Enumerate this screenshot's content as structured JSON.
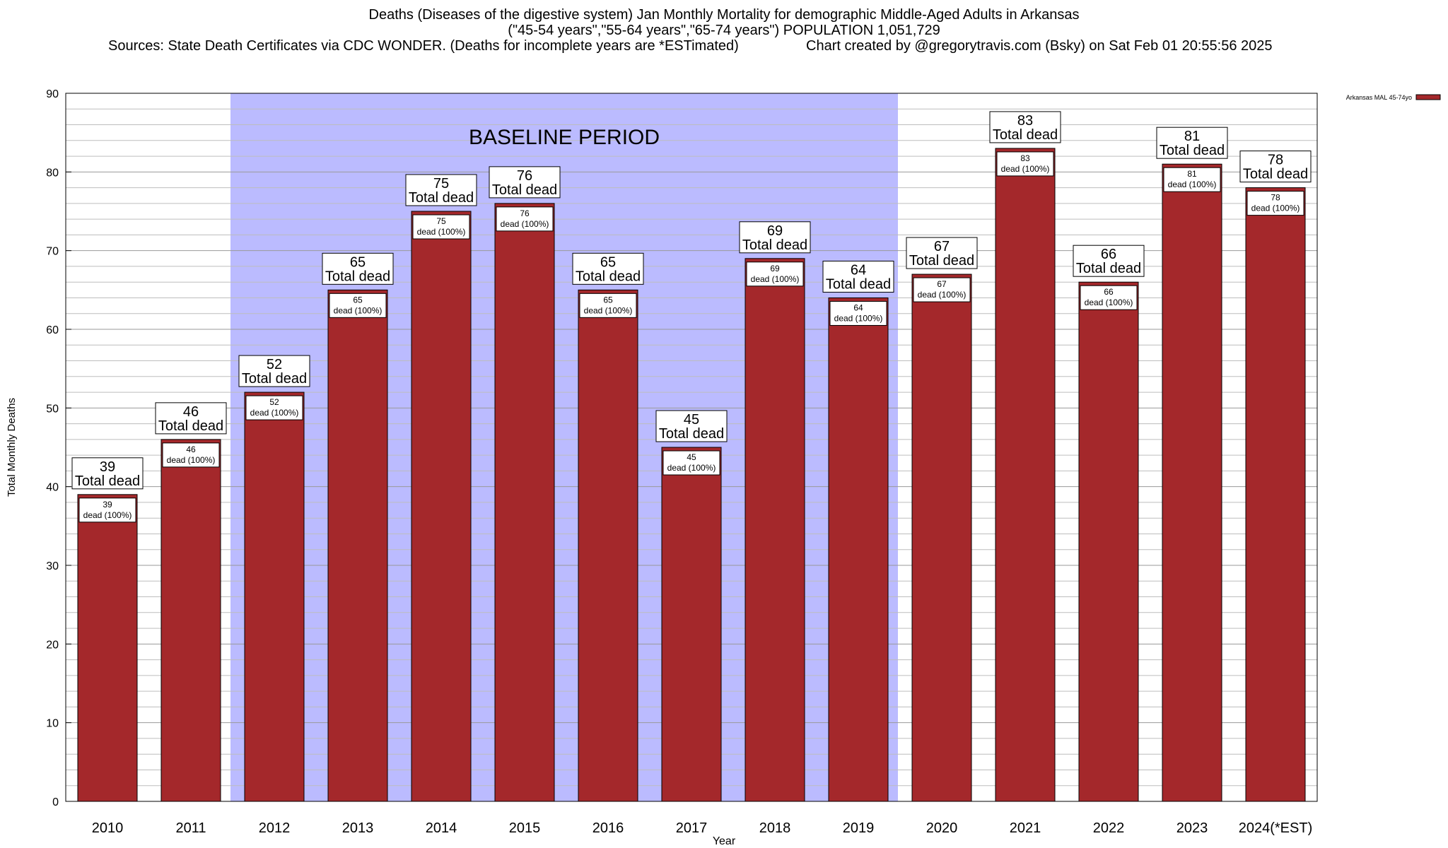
{
  "header": {
    "title_line1": "Deaths (Diseases of the digestive system) Jan Monthly Mortality for demographic Middle-Aged Adults in Arkansas",
    "title_line2": "(\"45-54 years\",\"55-64 years\",\"65-74 years\") POPULATION 1,051,729",
    "sources": "Sources: State Death Certificates via CDC WONDER. (Deaths for incomplete years are *ESTimated)",
    "credit": "Chart created by @gregorytravis.com (Bsky) on Sat Feb 01 20:55:56 2025"
  },
  "chart_data": {
    "type": "bar",
    "xlabel": "Year",
    "ylabel": "Total Monthly Deaths",
    "ylim": [
      0,
      90
    ],
    "y_ticks": [
      0,
      10,
      20,
      30,
      40,
      50,
      60,
      70,
      80,
      90
    ],
    "grid": true,
    "categories": [
      "2010",
      "2011",
      "2012",
      "2013",
      "2014",
      "2015",
      "2016",
      "2017",
      "2018",
      "2019",
      "2020",
      "2021",
      "2022",
      "2023",
      "2024(*EST)"
    ],
    "series": [
      {
        "name": "Arkansas MAL 45-74yo",
        "color": "#a4282b",
        "values": [
          39,
          46,
          52,
          65,
          75,
          76,
          65,
          45,
          69,
          64,
          67,
          83,
          66,
          81,
          78
        ]
      }
    ],
    "total_label_suffix": "Total dead",
    "inner_label_suffix": "dead (100%)",
    "baseline": {
      "label": "BASELINE PERIOD",
      "from": "2012",
      "to": "2019",
      "color": "#bbbbff"
    },
    "legend": {
      "position": "top-right",
      "label": "Arkansas MAL 45-74yo"
    }
  }
}
